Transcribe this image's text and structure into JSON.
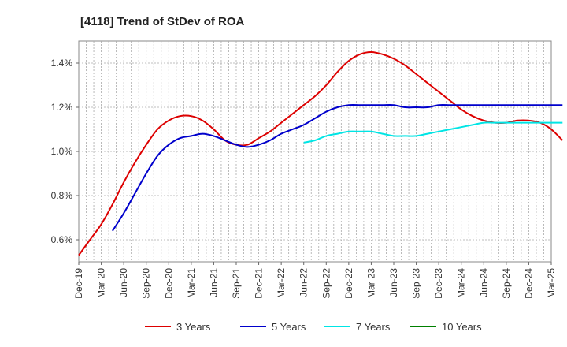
{
  "chart_data": {
    "type": "line",
    "title": "[4118]  Trend of StDev of ROA",
    "xlabel": "",
    "ylabel": "",
    "ylim": [
      0.5,
      1.5
    ],
    "yticks": [
      0.6,
      0.8,
      1.0,
      1.2,
      1.4
    ],
    "ytick_labels": [
      "0.6%",
      "0.8%",
      "1.0%",
      "1.2%",
      "1.4%"
    ],
    "x_tick_labels": [
      "Dec-19",
      "Mar-20",
      "Jun-20",
      "Sep-20",
      "Dec-20",
      "Mar-21",
      "Jun-21",
      "Sep-21",
      "Dec-21",
      "Mar-22",
      "Jun-22",
      "Sep-22",
      "Dec-22",
      "Mar-23",
      "Jun-23",
      "Sep-23",
      "Dec-23",
      "Mar-24",
      "Jun-24",
      "Sep-24",
      "Dec-24",
      "Mar-25"
    ],
    "grid": true,
    "legend_position": "bottom",
    "series": [
      {
        "name": "3 Years",
        "color": "#dd0000",
        "values": [
          0.53,
          0.6,
          0.67,
          0.76,
          0.86,
          0.95,
          1.03,
          1.1,
          1.14,
          1.16,
          1.16,
          1.14,
          1.1,
          1.05,
          1.03,
          1.03,
          1.06,
          1.09,
          1.13,
          1.17,
          1.21,
          1.25,
          1.3,
          1.36,
          1.41,
          1.44,
          1.45,
          1.44,
          1.42,
          1.39,
          1.35,
          1.31,
          1.27,
          1.23,
          1.19,
          1.16,
          1.14,
          1.13,
          1.13,
          1.14,
          1.14,
          1.13,
          1.1,
          1.05
        ]
      },
      {
        "name": "5 Years",
        "color": "#0000cc",
        "values": [
          null,
          null,
          null,
          0.64,
          0.72,
          0.81,
          0.9,
          0.98,
          1.03,
          1.06,
          1.07,
          1.08,
          1.07,
          1.05,
          1.03,
          1.02,
          1.03,
          1.05,
          1.08,
          1.1,
          1.12,
          1.15,
          1.18,
          1.2,
          1.21,
          1.21,
          1.21,
          1.21,
          1.21,
          1.2,
          1.2,
          1.2,
          1.21,
          1.21,
          1.21,
          1.21,
          1.21,
          1.21,
          1.21,
          1.21,
          1.21,
          1.21,
          1.21,
          1.21
        ]
      },
      {
        "name": "7 Years",
        "color": "#00e5e5",
        "values": [
          null,
          null,
          null,
          null,
          null,
          null,
          null,
          null,
          null,
          null,
          null,
          null,
          null,
          null,
          null,
          null,
          null,
          null,
          null,
          null,
          1.04,
          1.05,
          1.07,
          1.08,
          1.09,
          1.09,
          1.09,
          1.08,
          1.07,
          1.07,
          1.07,
          1.08,
          1.09,
          1.1,
          1.11,
          1.12,
          1.13,
          1.13,
          1.13,
          1.13,
          1.13,
          1.13,
          1.13,
          1.13
        ]
      },
      {
        "name": "10 Years",
        "color": "#008000",
        "values": []
      }
    ]
  }
}
